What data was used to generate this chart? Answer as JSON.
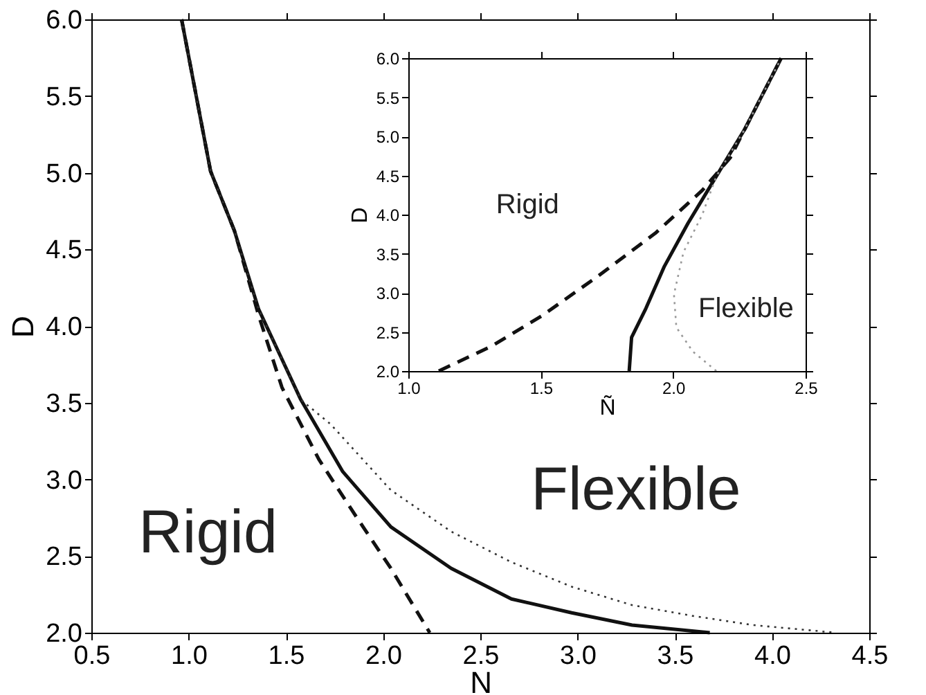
{
  "chart_data": [
    {
      "type": "line",
      "xlabel": "N",
      "ylabel": "D",
      "xlim": [
        0.5,
        4.5
      ],
      "ylim": [
        2.0,
        6.0
      ],
      "xticks": [
        {
          "value": 0.5,
          "label": "0.5"
        },
        {
          "value": 1,
          "label": "1.0"
        },
        {
          "value": 1.5,
          "label": "1.5"
        },
        {
          "value": 2,
          "label": "2.0"
        },
        {
          "value": 2.5,
          "label": "2.5"
        },
        {
          "value": 3,
          "label": "3.0"
        },
        {
          "value": 3.5,
          "label": "3.5"
        },
        {
          "value": 4,
          "label": "4.0"
        },
        {
          "value": 4.5,
          "label": "4.5"
        }
      ],
      "yticks": [
        {
          "value": 2,
          "label": "2.0"
        },
        {
          "value": 2.5,
          "label": "2.5"
        },
        {
          "value": 3,
          "label": "3.0"
        },
        {
          "value": 3.5,
          "label": "3.5"
        },
        {
          "value": 4,
          "label": "4.0"
        },
        {
          "value": 4.5,
          "label": "4.5"
        },
        {
          "value": 5,
          "label": "5.0"
        },
        {
          "value": 5.5,
          "label": "5.5"
        },
        {
          "value": 6,
          "label": "6.0"
        }
      ],
      "grid": false,
      "marker": "none",
      "series": [
        {
          "color": "#111111",
          "line_style": "solid",
          "x": [
            0.964,
            1.113,
            1.236,
            1.36,
            1.577,
            1.793,
            2.04,
            2.35,
            2.66,
            2.97,
            3.28,
            3.68
          ],
          "values": [
            6.0,
            5.01,
            4.62,
            4.11,
            3.52,
            3.05,
            2.69,
            2.42,
            2.22,
            2.13,
            2.05,
            2.0
          ]
        },
        {
          "color": "#111111",
          "line_style": "dashed",
          "x": [
            0.964,
            1.113,
            1.236,
            1.36,
            1.48,
            1.67,
            1.855,
            2.04,
            2.24
          ],
          "values": [
            6.0,
            5.01,
            4.62,
            4.07,
            3.6,
            3.13,
            2.77,
            2.42,
            2.0
          ]
        },
        {
          "color": "#333333",
          "line_style": "dotted",
          "x": [
            0.964,
            1.113,
            1.236,
            1.36,
            1.577,
            1.73,
            2.04,
            2.35,
            2.66,
            2.97,
            3.28,
            3.59,
            3.9,
            4.33
          ],
          "values": [
            6.0,
            5.01,
            4.62,
            4.11,
            3.52,
            3.36,
            2.93,
            2.66,
            2.46,
            2.3,
            2.18,
            2.11,
            2.05,
            2.0
          ]
        }
      ],
      "annotations": [
        "Rigid",
        "Flexible"
      ]
    },
    {
      "type": "line",
      "xlabel": "Ñ",
      "ylabel": "D",
      "xlim": [
        1.0,
        2.5
      ],
      "ylim": [
        2.0,
        6.0
      ],
      "xticks": [
        {
          "value": 1,
          "label": "1.0"
        },
        {
          "value": 1.5,
          "label": "1.5"
        },
        {
          "value": 2,
          "label": "2.0"
        },
        {
          "value": 2.5,
          "label": "2.5"
        }
      ],
      "yticks": [
        {
          "value": 2,
          "label": "2.0"
        },
        {
          "value": 2.5,
          "label": "2.5"
        },
        {
          "value": 3,
          "label": "3.0"
        },
        {
          "value": 3.5,
          "label": "3.5"
        },
        {
          "value": 4,
          "label": "4.0"
        },
        {
          "value": 4.5,
          "label": "4.5"
        },
        {
          "value": 5,
          "label": "5.0"
        },
        {
          "value": 5.5,
          "label": "5.5"
        },
        {
          "value": 6,
          "label": "6.0"
        }
      ],
      "grid": false,
      "marker": "none",
      "series": [
        {
          "color": "#111111",
          "line_style": "solid",
          "x": [
            1.834,
            1.843,
            1.897,
            1.967,
            2.056,
            2.163,
            2.27,
            2.408
          ],
          "values": [
            2.0,
            2.43,
            2.8,
            3.34,
            3.89,
            4.49,
            5.09,
            6.0
          ]
        },
        {
          "color": "#111111",
          "line_style": "dashed",
          "x": [
            1.115,
            1.31,
            1.506,
            1.719,
            1.932,
            2.11,
            2.216,
            2.27,
            2.408
          ],
          "values": [
            2.0,
            2.31,
            2.71,
            3.22,
            3.76,
            4.31,
            4.73,
            5.09,
            6.0
          ]
        },
        {
          "color": "#999999",
          "line_style": "dotted",
          "x": [
            2.163,
            2.074,
            2.012,
            2.003,
            2.039,
            2.11,
            2.163,
            2.27,
            2.408
          ],
          "values": [
            2.0,
            2.25,
            2.56,
            2.98,
            3.52,
            4.0,
            4.49,
            5.09,
            6.0
          ]
        }
      ],
      "annotations": [
        "Rigid",
        "Flexible"
      ]
    }
  ]
}
